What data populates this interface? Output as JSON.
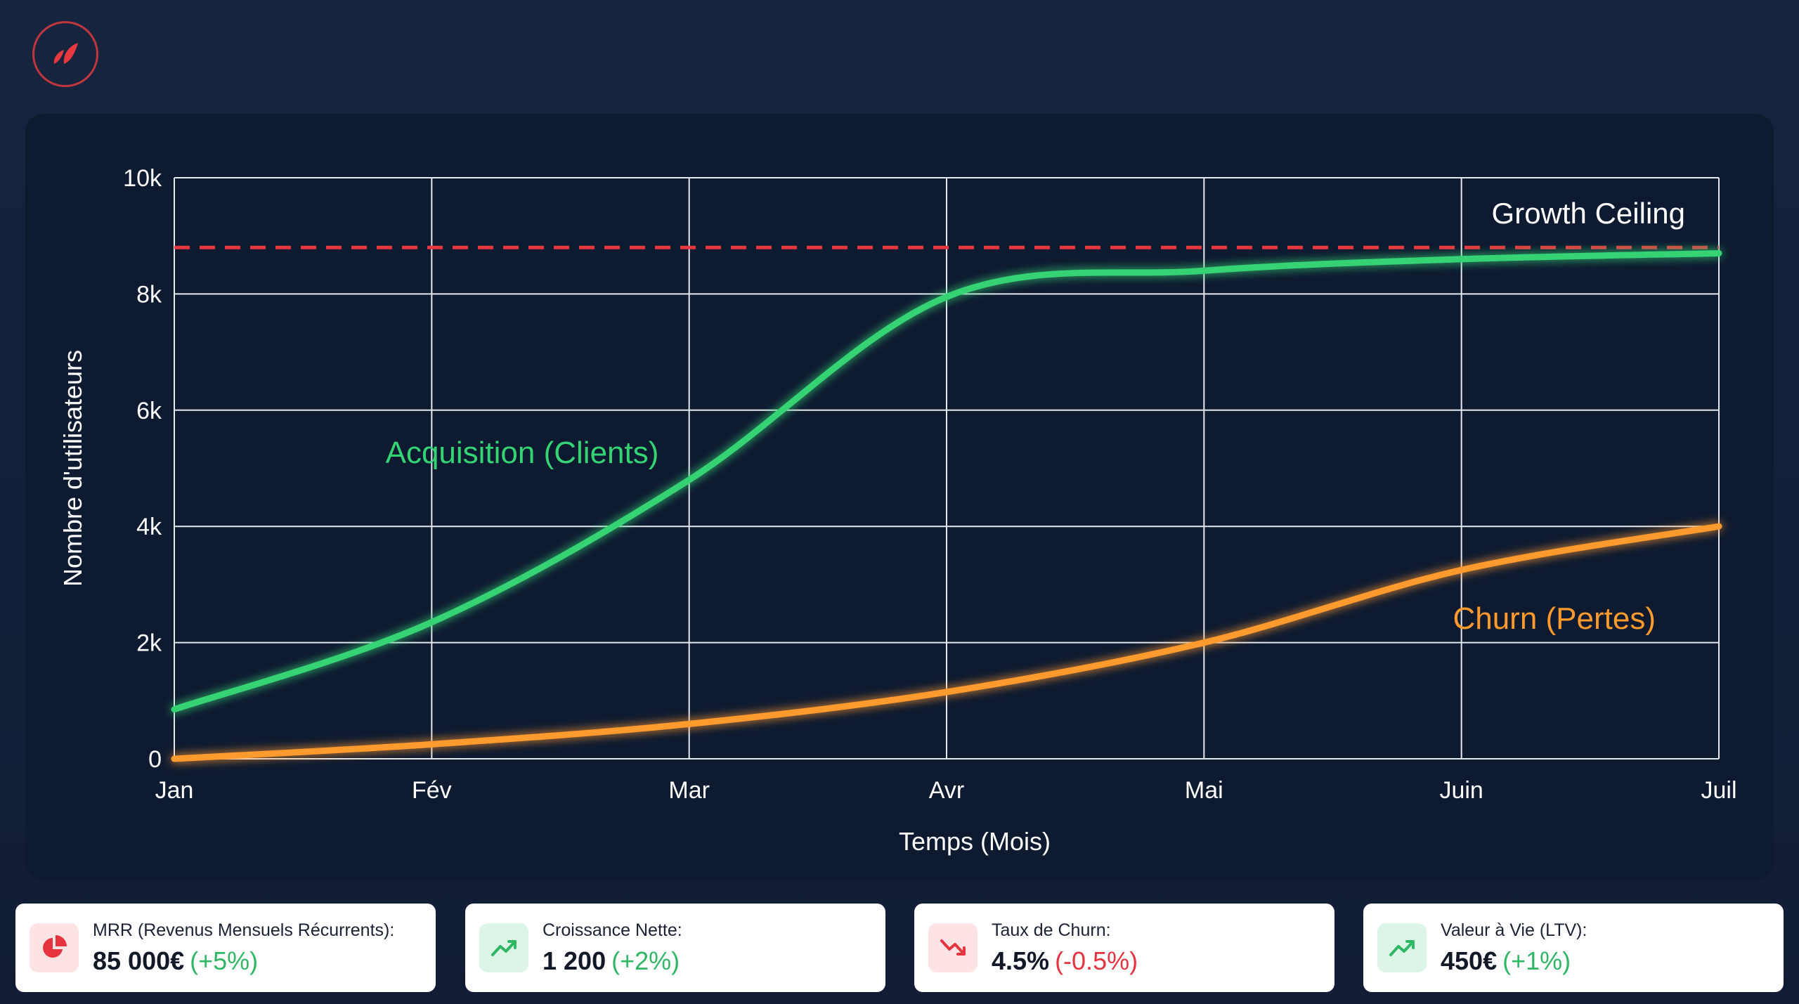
{
  "chart_data": {
    "type": "line",
    "title": "",
    "xlabel": "Temps (Mois)",
    "ylabel": "Nombre d'utilisateurs",
    "categories": [
      "Jan",
      "Fév",
      "Mar",
      "Avr",
      "Mai",
      "Juin",
      "Juil"
    ],
    "ylim": [
      0,
      10000
    ],
    "yticks": [
      0,
      2000,
      4000,
      6000,
      8000,
      10000
    ],
    "ytick_labels": [
      "0",
      "2k",
      "4k",
      "6k",
      "8k",
      "10k"
    ],
    "grid": true,
    "series": [
      {
        "name": "Acquisition (Clients)",
        "color": "#34d373",
        "values": [
          850,
          2350,
          4800,
          7950,
          8400,
          8600,
          8700
        ]
      },
      {
        "name": "Churn (Pertes)",
        "color": "#ff9a2e",
        "values": [
          0,
          250,
          600,
          1150,
          2000,
          3250,
          4000
        ]
      }
    ],
    "reference_line": {
      "label": "Growth Ceiling",
      "value": 8800,
      "color": "#e8383f",
      "style": "dashed"
    }
  },
  "kpis": [
    {
      "icon": "pie-chart-icon",
      "tone": "red",
      "label": "MRR (Revenus Mensuels Récurrents):",
      "value": "85 000€",
      "delta": "(+5%)",
      "delta_tone": "pos"
    },
    {
      "icon": "trend-up-icon",
      "tone": "green",
      "label": "Croissance Nette:",
      "value": "1 200",
      "delta": "(+2%)",
      "delta_tone": "pos"
    },
    {
      "icon": "trend-down-icon",
      "tone": "red",
      "label": "Taux de Churn:",
      "value": "4.5%",
      "delta": "(-0.5%)",
      "delta_tone": "neg"
    },
    {
      "icon": "trend-up-icon",
      "tone": "green",
      "label": "Valeur à Vie (LTV):",
      "value": "450€",
      "delta": "(+1%)",
      "delta_tone": "pos"
    }
  ],
  "colors": {
    "background": "#14213a",
    "card": "#0e1a30",
    "grid": "#e6e9ef",
    "text": "#ffffff",
    "brand": "#e8383f"
  }
}
